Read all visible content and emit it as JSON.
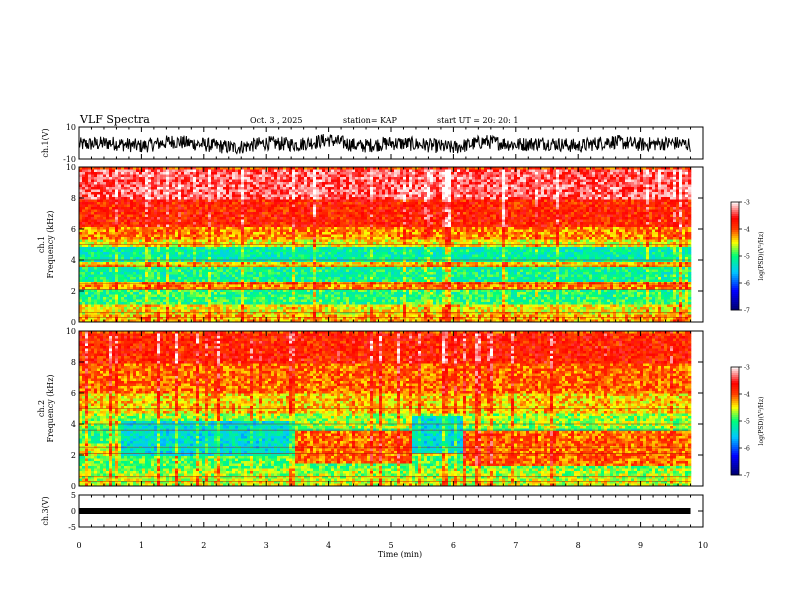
{
  "header": {
    "title": "VLF Spectra",
    "date": "Oct. 3  , 2025",
    "station": "station= KAP",
    "start_ut": "start  UT  =   20: 20: 1"
  },
  "chart_data": [
    {
      "type": "line",
      "panel": "ch1_waveform",
      "ylabel": "ch.1(V)",
      "ylim": [
        -10,
        10
      ],
      "yticks": [
        "10",
        "-10"
      ],
      "x": [
        0,
        0.5,
        1,
        1.5,
        2,
        2.5,
        3,
        3.5,
        4,
        4.5,
        5,
        5.5,
        6,
        6.5,
        7,
        7.5,
        8,
        8.5,
        9,
        9.5,
        9.8
      ],
      "y": [
        -1,
        0,
        -2,
        1,
        -1,
        -3,
        0,
        -1,
        2,
        -2,
        0,
        -1,
        -3,
        1,
        -1,
        0,
        -2,
        1,
        -1,
        0,
        -1
      ],
      "line_color": "#000000"
    },
    {
      "type": "heatmap",
      "panel": "ch1_spectrogram",
      "ylabel": "ch.1\nFrequency  (kHz)",
      "ylim": [
        0,
        10
      ],
      "yticks": [
        "0",
        "2",
        "4",
        "6",
        "8",
        "10"
      ],
      "xlim": [
        0,
        10
      ],
      "data_extent_min": 9.8,
      "bands": [
        {
          "f_low": 0.0,
          "f_high": 0.6,
          "level": -4.3
        },
        {
          "f_low": 0.6,
          "f_high": 1.2,
          "level": -4.5
        },
        {
          "f_low": 1.2,
          "f_high": 2.2,
          "level": -5.0
        },
        {
          "f_low": 2.2,
          "f_high": 2.6,
          "level": -4.2
        },
        {
          "f_low": 2.6,
          "f_high": 3.6,
          "level": -5.1
        },
        {
          "f_low": 3.6,
          "f_high": 4.0,
          "level": -4.4
        },
        {
          "f_low": 4.0,
          "f_high": 5.0,
          "level": -5.2
        },
        {
          "f_low": 5.0,
          "f_high": 5.4,
          "level": -4.5
        },
        {
          "f_low": 5.4,
          "f_high": 6.2,
          "level": -4.2
        },
        {
          "f_low": 6.2,
          "f_high": 8.0,
          "level": -3.8
        },
        {
          "f_low": 8.0,
          "f_high": 10.0,
          "level": -3.4
        }
      ]
    },
    {
      "type": "heatmap",
      "panel": "ch2_spectrogram",
      "ylabel": "ch.2\nFrequency  (kHz)",
      "ylim": [
        0,
        10
      ],
      "yticks": [
        "0",
        "2",
        "4",
        "6",
        "8",
        "10"
      ],
      "xlim": [
        0,
        10
      ],
      "data_extent_min": 9.8,
      "bands": [
        {
          "f_low": 0.0,
          "f_high": 0.6,
          "level": -4.6
        },
        {
          "f_low": 0.6,
          "f_high": 1.2,
          "level": -4.7
        },
        {
          "f_low": 1.2,
          "f_high": 2.0,
          "level": -4.9
        },
        {
          "f_low": 2.0,
          "f_high": 2.8,
          "level": -4.6
        },
        {
          "f_low": 2.8,
          "f_high": 3.8,
          "level": -5.0
        },
        {
          "f_low": 3.8,
          "f_high": 4.8,
          "level": -4.7
        },
        {
          "f_low": 4.8,
          "f_high": 6.0,
          "level": -4.4
        },
        {
          "f_low": 6.0,
          "f_high": 8.0,
          "level": -4.1
        },
        {
          "f_low": 8.0,
          "f_high": 10.0,
          "level": -3.8
        }
      ],
      "cyan_patches": [
        {
          "t_start": 0.65,
          "t_end": 3.45,
          "f_low": 2.0,
          "f_high": 4.3
        },
        {
          "t_start": 5.3,
          "t_end": 6.15,
          "f_low": 2.1,
          "f_high": 4.6
        }
      ],
      "red_regions": [
        {
          "t_start": 3.45,
          "t_end": 5.3,
          "f_low": 1.5,
          "f_high": 3.6
        },
        {
          "t_start": 6.15,
          "t_end": 9.8,
          "f_low": 1.3,
          "f_high": 3.6
        }
      ]
    },
    {
      "type": "line",
      "panel": "ch3_waveform",
      "ylabel": "ch.3(V)",
      "ylim": [
        -5,
        5
      ],
      "yticks": [
        "5",
        "0",
        "-5"
      ],
      "x": [
        0,
        9.8
      ],
      "y": [
        0,
        0
      ],
      "line_color": "#000000"
    }
  ],
  "time_axis": {
    "label": "Time  (min)",
    "ticks": [
      "0",
      "1",
      "2",
      "3",
      "4",
      "5",
      "6",
      "7",
      "8",
      "9",
      "10"
    ]
  },
  "colorbars": [
    {
      "panel": "ch1",
      "label": "log(PSD)(V²/Hz)",
      "ticks": [
        "-3",
        "-4",
        "-5",
        "-6",
        "-7"
      ],
      "range": [
        -7,
        -3
      ]
    },
    {
      "panel": "ch2",
      "label": "log(PSD)(V²/Hz)",
      "ticks": [
        "-3",
        "-4",
        "-5",
        "-6",
        "-7"
      ],
      "range": [
        -7,
        -3
      ]
    }
  ],
  "colors": {
    "spectrogram_scale": [
      "#000070",
      "#0000ff",
      "#00c0ff",
      "#00ff80",
      "#ffff00",
      "#ff0000",
      "#ffffff"
    ]
  }
}
